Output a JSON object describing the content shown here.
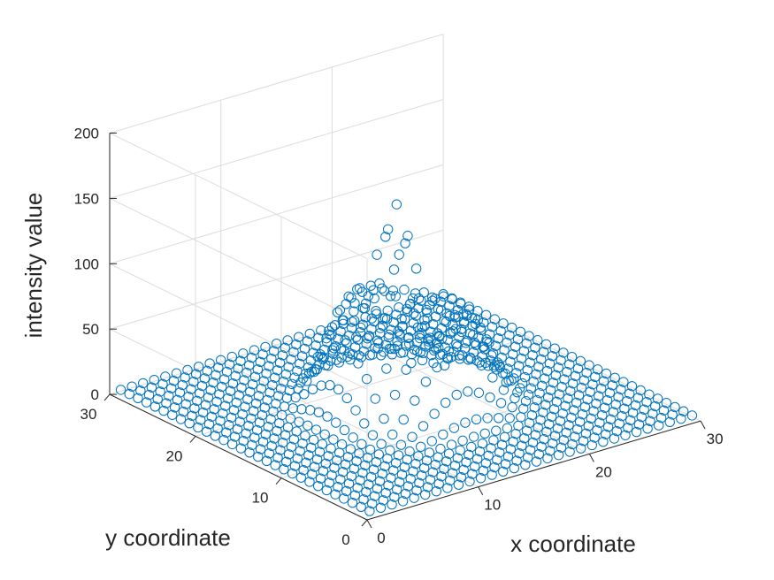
{
  "chart_data": {
    "type": "scatter3d",
    "title": "",
    "xlabel": "x coordinate",
    "ylabel": "y coordinate",
    "zlabel": "intensity value",
    "xlim": [
      0,
      30
    ],
    "ylim": [
      0,
      30
    ],
    "zlim": [
      0,
      200
    ],
    "x_ticks": [
      0,
      10,
      20,
      30
    ],
    "y_ticks": [
      0,
      10,
      20,
      30
    ],
    "z_ticks": [
      0,
      50,
      100,
      150,
      200
    ],
    "grid": true,
    "marker": "open-circle",
    "marker_color": "#0072BD",
    "grid_x": {
      "start": 1,
      "end": 30,
      "step": 1
    },
    "grid_y": {
      "start": 1,
      "end": 30,
      "step": 1
    },
    "surface": {
      "shape": "ring with central dip",
      "background_level": 1,
      "ring_center": [
        15.5,
        15.5
      ],
      "ring_radius": 4.5,
      "ring_peak": 65,
      "ring_width": 2.2,
      "spike_center": [
        15,
        16
      ],
      "spike_peak": 150,
      "spike_width": 1.6
    }
  },
  "colors": {
    "series": "#0072BD",
    "axis": "#262626",
    "grid": "#dcdcdc"
  }
}
